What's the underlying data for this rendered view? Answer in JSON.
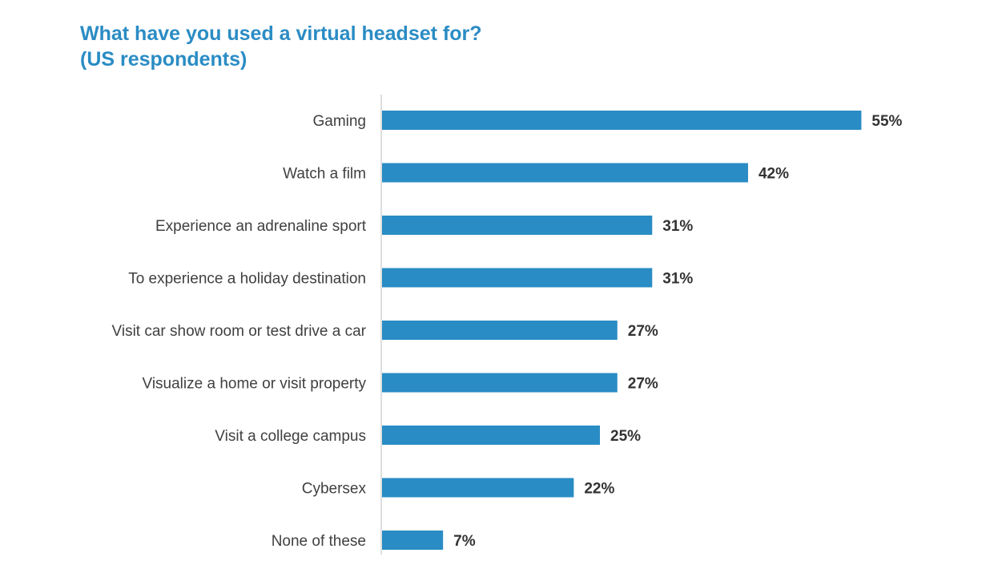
{
  "chart_data": {
    "type": "bar",
    "orientation": "horizontal",
    "title": "What have you used a virtual headset for?",
    "subtitle": "(US respondents)",
    "categories": [
      "Gaming",
      "Watch a film",
      "Experience an adrenaline sport",
      "To experience a holiday destination",
      "Visit car show room or test drive a car",
      "Visualize a home or visit property",
      "Visit a college campus",
      "Cybersex",
      "None of these"
    ],
    "values": [
      55,
      42,
      31,
      31,
      27,
      27,
      25,
      22,
      7
    ],
    "value_labels": [
      "55%",
      "42%",
      "31%",
      "31%",
      "27%",
      "27%",
      "25%",
      "22%",
      "7%"
    ],
    "unit": "%",
    "xlim": [
      0,
      60
    ],
    "grid": false,
    "bar_color": "#2a8cc4",
    "title_color": "#2a8cc4"
  }
}
